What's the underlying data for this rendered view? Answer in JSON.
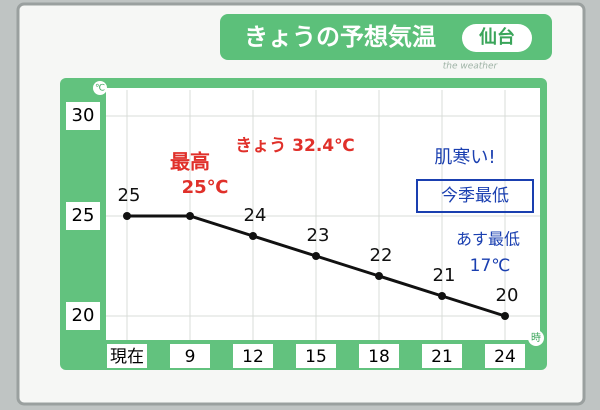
{
  "chart_data": {
    "type": "line",
    "title": "きょうの予想気温",
    "location": "仙台",
    "subtitle": "the weather",
    "y_unit": "℃",
    "x_unit": "時",
    "categories": [
      "現在",
      "9",
      "12",
      "15",
      "18",
      "21",
      "24"
    ],
    "values": [
      25,
      25,
      24,
      23,
      22,
      21,
      20
    ],
    "value_labels": [
      "25",
      null,
      "24",
      "23",
      "22",
      "21",
      "20"
    ],
    "color": "#111111",
    "ylim": [
      19,
      31
    ],
    "yticks": [
      20,
      25,
      30
    ],
    "grid": true,
    "annotations": [
      {
        "text": "きょう 32.4℃",
        "color": "#e0302a"
      },
      {
        "text": "最高",
        "color": "#e0302a"
      },
      {
        "text": "25℃",
        "color": "#e0302a"
      },
      {
        "text": "肌寒い!",
        "color": "#1a3fb0"
      },
      {
        "text": "今季最低",
        "color": "#1a3fb0"
      },
      {
        "text": "あす最低",
        "color": "#1a3fb0"
      },
      {
        "text": "17℃",
        "color": "#1a3fb0"
      }
    ]
  }
}
